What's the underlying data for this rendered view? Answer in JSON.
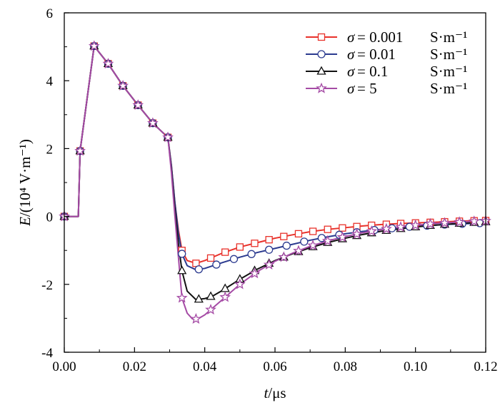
{
  "chart_data": {
    "type": "line",
    "xlabel_var": "t",
    "xlabel_unit": "/μs",
    "ylabel_var": "E",
    "ylabel_unit": "/(10⁴ V·m⁻¹)",
    "xlim": [
      0,
      0.12
    ],
    "ylim": [
      -4,
      6
    ],
    "x_ticks": [
      0.0,
      0.02,
      0.04,
      0.06,
      0.08,
      0.1,
      0.12
    ],
    "x_tick_labels": [
      "0.00",
      "0.02",
      "0.04",
      "0.06",
      "0.08",
      "0.10",
      "0.12"
    ],
    "y_ticks": [
      -4,
      -2,
      0,
      2,
      4,
      6
    ],
    "y_tick_labels": [
      "-4",
      "-2",
      "0",
      "2",
      "4",
      "6"
    ],
    "grid": false,
    "legend_position": "top-right",
    "series": [
      {
        "name_symbol": "σ",
        "name_value": "= 0.001",
        "name_unit": "S·m⁻¹",
        "color": "#e8312a",
        "marker": "square",
        "points": [
          [
            0,
            0
          ],
          [
            0.004,
            0
          ],
          [
            0.0045,
            1.93
          ],
          [
            0.0085,
            5.02
          ],
          [
            0.0125,
            4.5
          ],
          [
            0.0167,
            3.85
          ],
          [
            0.021,
            3.28
          ],
          [
            0.0252,
            2.75
          ],
          [
            0.0295,
            2.33
          ],
          [
            0.0305,
            1.5
          ],
          [
            0.0315,
            0.4
          ],
          [
            0.0325,
            -0.4
          ],
          [
            0.0335,
            -1.0
          ],
          [
            0.035,
            -1.3
          ],
          [
            0.0375,
            -1.38
          ],
          [
            0.04,
            -1.3
          ],
          [
            0.045,
            -1.08
          ],
          [
            0.05,
            -0.9
          ],
          [
            0.055,
            -0.77
          ],
          [
            0.06,
            -0.64
          ],
          [
            0.065,
            -0.54
          ],
          [
            0.07,
            -0.45
          ],
          [
            0.075,
            -0.38
          ],
          [
            0.08,
            -0.33
          ],
          [
            0.085,
            -0.28
          ],
          [
            0.09,
            -0.24
          ],
          [
            0.095,
            -0.21
          ],
          [
            0.1,
            -0.19
          ],
          [
            0.105,
            -0.17
          ],
          [
            0.11,
            -0.15
          ],
          [
            0.115,
            -0.13
          ],
          [
            0.12,
            -0.12
          ]
        ],
        "marker_x": [
          0,
          0.0045,
          0.0085,
          0.0125,
          0.0167,
          0.021,
          0.0252,
          0.0295,
          0.0335,
          0.0375,
          0.0417,
          0.0458,
          0.05,
          0.0542,
          0.0583,
          0.0625,
          0.0667,
          0.0708,
          0.075,
          0.0792,
          0.0833,
          0.0875,
          0.0917,
          0.0958,
          0.1,
          0.1042,
          0.1083,
          0.1125,
          0.1167,
          0.12
        ]
      },
      {
        "name_symbol": "σ",
        "name_value": "= 0.01",
        "name_unit": "S·m⁻¹",
        "color": "#2b3a8f",
        "marker": "circle",
        "points": [
          [
            0,
            0
          ],
          [
            0.004,
            0
          ],
          [
            0.0045,
            1.93
          ],
          [
            0.0085,
            5.02
          ],
          [
            0.0125,
            4.5
          ],
          [
            0.0167,
            3.85
          ],
          [
            0.021,
            3.28
          ],
          [
            0.0252,
            2.75
          ],
          [
            0.0295,
            2.33
          ],
          [
            0.0305,
            1.5
          ],
          [
            0.0315,
            0.4
          ],
          [
            0.0325,
            -0.5
          ],
          [
            0.0335,
            -1.1
          ],
          [
            0.035,
            -1.45
          ],
          [
            0.0375,
            -1.57
          ],
          [
            0.04,
            -1.53
          ],
          [
            0.045,
            -1.36
          ],
          [
            0.05,
            -1.2
          ],
          [
            0.055,
            -1.06
          ],
          [
            0.06,
            -0.94
          ],
          [
            0.065,
            -0.82
          ],
          [
            0.07,
            -0.7
          ],
          [
            0.075,
            -0.6
          ],
          [
            0.08,
            -0.51
          ],
          [
            0.085,
            -0.44
          ],
          [
            0.09,
            -0.38
          ],
          [
            0.095,
            -0.33
          ],
          [
            0.1,
            -0.29
          ],
          [
            0.105,
            -0.26
          ],
          [
            0.11,
            -0.23
          ],
          [
            0.115,
            -0.21
          ],
          [
            0.12,
            -0.19
          ]
        ],
        "marker_x": [
          0,
          0.0045,
          0.0085,
          0.0125,
          0.0167,
          0.021,
          0.0252,
          0.0295,
          0.0335,
          0.0383,
          0.0433,
          0.0483,
          0.0533,
          0.0583,
          0.0633,
          0.0683,
          0.0733,
          0.0783,
          0.0833,
          0.0883,
          0.0933,
          0.0983,
          0.1033,
          0.1083,
          0.1133,
          0.1183
        ]
      },
      {
        "name_symbol": "σ",
        "name_value": "= 0.1",
        "name_unit": "S·m⁻¹",
        "color": "#111111",
        "marker": "triangle",
        "points": [
          [
            0,
            0
          ],
          [
            0.004,
            0
          ],
          [
            0.0045,
            1.93
          ],
          [
            0.0085,
            5.02
          ],
          [
            0.0125,
            4.5
          ],
          [
            0.0167,
            3.85
          ],
          [
            0.021,
            3.28
          ],
          [
            0.0252,
            2.75
          ],
          [
            0.0295,
            2.33
          ],
          [
            0.0305,
            1.4
          ],
          [
            0.0315,
            0.2
          ],
          [
            0.0325,
            -0.8
          ],
          [
            0.0335,
            -1.6
          ],
          [
            0.035,
            -2.2
          ],
          [
            0.0375,
            -2.45
          ],
          [
            0.04,
            -2.42
          ],
          [
            0.0425,
            -2.33
          ],
          [
            0.045,
            -2.18
          ],
          [
            0.05,
            -1.85
          ],
          [
            0.055,
            -1.55
          ],
          [
            0.06,
            -1.3
          ],
          [
            0.065,
            -1.1
          ],
          [
            0.07,
            -0.92
          ],
          [
            0.075,
            -0.77
          ],
          [
            0.08,
            -0.64
          ],
          [
            0.085,
            -0.53
          ],
          [
            0.09,
            -0.44
          ],
          [
            0.095,
            -0.37
          ],
          [
            0.1,
            -0.31
          ],
          [
            0.105,
            -0.26
          ],
          [
            0.11,
            -0.22
          ],
          [
            0.115,
            -0.19
          ],
          [
            0.12,
            -0.16
          ]
        ],
        "marker_x": [
          0,
          0.0045,
          0.0085,
          0.0125,
          0.0167,
          0.021,
          0.0252,
          0.0295,
          0.0335,
          0.0383,
          0.0417,
          0.0458,
          0.05,
          0.0542,
          0.0583,
          0.0625,
          0.0667,
          0.0708,
          0.075,
          0.0792,
          0.0833,
          0.0875,
          0.0917,
          0.0958,
          0.1,
          0.1042,
          0.1083,
          0.1125,
          0.1167,
          0.12
        ]
      },
      {
        "name_symbol": "σ",
        "name_value": "= 5",
        "name_unit": "S·m⁻¹",
        "color": "#a54ba5",
        "marker": "star",
        "points": [
          [
            0,
            0
          ],
          [
            0.004,
            0
          ],
          [
            0.0045,
            1.93
          ],
          [
            0.0085,
            5.02
          ],
          [
            0.0125,
            4.5
          ],
          [
            0.0167,
            3.85
          ],
          [
            0.021,
            3.28
          ],
          [
            0.0252,
            2.75
          ],
          [
            0.0295,
            2.33
          ],
          [
            0.0305,
            1.3
          ],
          [
            0.0315,
            0.0
          ],
          [
            0.0325,
            -1.2
          ],
          [
            0.0335,
            -2.4
          ],
          [
            0.035,
            -2.85
          ],
          [
            0.0365,
            -3.02
          ],
          [
            0.038,
            -3.02
          ],
          [
            0.04,
            -2.9
          ],
          [
            0.045,
            -2.45
          ],
          [
            0.05,
            -2.0
          ],
          [
            0.055,
            -1.62
          ],
          [
            0.06,
            -1.32
          ],
          [
            0.065,
            -1.08
          ],
          [
            0.07,
            -0.88
          ],
          [
            0.075,
            -0.72
          ],
          [
            0.08,
            -0.59
          ],
          [
            0.085,
            -0.48
          ],
          [
            0.09,
            -0.39
          ],
          [
            0.095,
            -0.32
          ],
          [
            0.1,
            -0.26
          ],
          [
            0.105,
            -0.21
          ],
          [
            0.11,
            -0.18
          ],
          [
            0.115,
            -0.15
          ],
          [
            0.12,
            -0.13
          ]
        ],
        "marker_x": [
          0,
          0.0045,
          0.0085,
          0.0125,
          0.0167,
          0.021,
          0.0252,
          0.0295,
          0.0335,
          0.0375,
          0.0417,
          0.0458,
          0.05,
          0.0542,
          0.0583,
          0.0625,
          0.0667,
          0.0708,
          0.075,
          0.0792,
          0.0833,
          0.0875,
          0.0917,
          0.0958,
          0.1,
          0.1042,
          0.1083,
          0.1125,
          0.1167,
          0.12
        ]
      }
    ]
  }
}
